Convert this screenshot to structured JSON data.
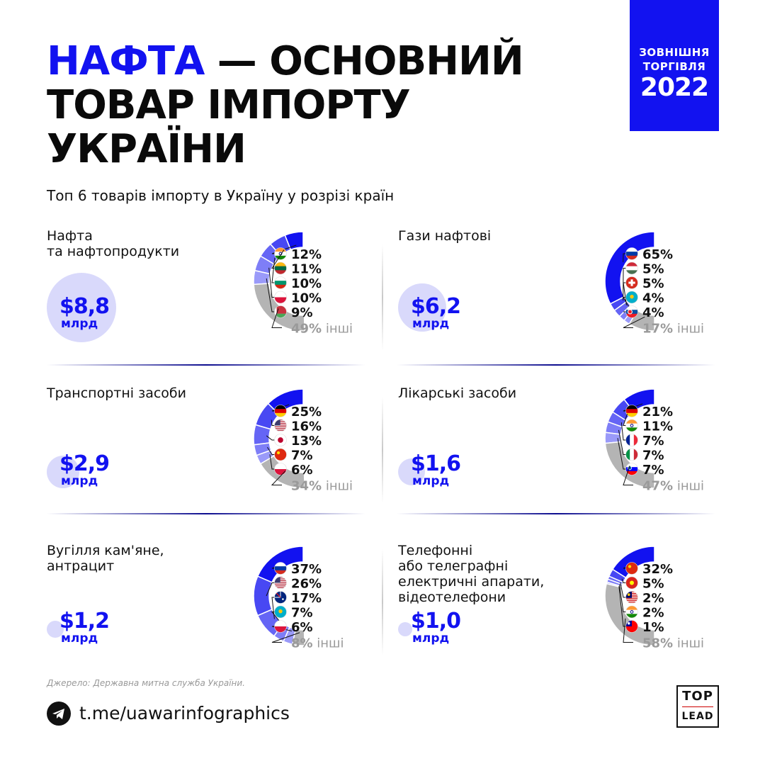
{
  "header": {
    "title_accent": "НАФТА",
    "title_rest_line1": " — ОСНОВНИЙ",
    "title_line2": "ТОВАР ІМПОРТУ",
    "title_line3": "УКРАЇНИ",
    "subtitle": "Топ 6 товарів імпорту в Україну у розрізі країн"
  },
  "badge": {
    "line1": "ЗОВНІШНЯ",
    "line2": "ТОРГІВЛЯ",
    "year": "2022"
  },
  "colors": {
    "accent": "#1212f0",
    "other": "#b4b4b4",
    "bubble": "#d9d9fb",
    "seg_light": "#6c6cf5"
  },
  "others_label": "інші",
  "chart_data": [
    {
      "type": "pie",
      "title": "Нафта\nта нафтопродукти",
      "total_value": "$8,8",
      "total_unit": "млрд",
      "total_billion": 8.8,
      "slices": [
        {
          "country": "India",
          "flag": "india-flag",
          "percent": 12,
          "label": "12%"
        },
        {
          "country": "Lithuania",
          "flag": "lithuania-flag",
          "percent": 11,
          "label": "11%"
        },
        {
          "country": "Bulgaria",
          "flag": "bulgaria-flag",
          "percent": 10,
          "label": "10%"
        },
        {
          "country": "Poland",
          "flag": "poland-flag",
          "percent": 10,
          "label": "10%"
        },
        {
          "country": "Belarus",
          "flag": "belarus-flag",
          "percent": 9,
          "label": "9%"
        }
      ],
      "other": {
        "percent": 49,
        "label": "49%"
      }
    },
    {
      "type": "pie",
      "title": "Гази нафтові",
      "total_value": "$6,2",
      "total_unit": "млрд",
      "total_billion": 6.2,
      "slices": [
        {
          "country": "Russia",
          "flag": "russia-flag",
          "percent": 65,
          "label": "65%"
        },
        {
          "country": "Hungary",
          "flag": "hungary-flag",
          "percent": 5,
          "label": "5%"
        },
        {
          "country": "Switzerland",
          "flag": "switzerland-flag",
          "percent": 5,
          "label": "5%"
        },
        {
          "country": "Kazakhstan",
          "flag": "kazakhstan-flag",
          "percent": 4,
          "label": "4%"
        },
        {
          "country": "Slovakia",
          "flag": "slovakia-flag",
          "percent": 4,
          "label": "4%"
        }
      ],
      "other": {
        "percent": 17,
        "label": "17%"
      }
    },
    {
      "type": "pie",
      "title": "Транспортні засоби",
      "total_value": "$2,9",
      "total_unit": "млрд",
      "total_billion": 2.9,
      "slices": [
        {
          "country": "Germany",
          "flag": "germany-flag",
          "percent": 25,
          "label": "25%"
        },
        {
          "country": "USA",
          "flag": "usa-flag",
          "percent": 16,
          "label": "16%"
        },
        {
          "country": "Japan",
          "flag": "japan-flag",
          "percent": 13,
          "label": "13%"
        },
        {
          "country": "China",
          "flag": "china-flag",
          "percent": 7,
          "label": "7%"
        },
        {
          "country": "Poland",
          "flag": "poland-flag",
          "percent": 6,
          "label": "6%"
        }
      ],
      "other": {
        "percent": 34,
        "label": "34%"
      }
    },
    {
      "type": "pie",
      "title": "Лікарські засоби",
      "total_value": "$1,6",
      "total_unit": "млрд",
      "total_billion": 1.6,
      "slices": [
        {
          "country": "Germany",
          "flag": "germany-flag",
          "percent": 21,
          "label": "21%"
        },
        {
          "country": "India",
          "flag": "india-flag",
          "percent": 11,
          "label": "11%"
        },
        {
          "country": "France",
          "flag": "france-flag",
          "percent": 7,
          "label": "7%"
        },
        {
          "country": "Italy",
          "flag": "italy-flag",
          "percent": 7,
          "label": "7%"
        },
        {
          "country": "Slovenia",
          "flag": "slovenia-flag",
          "percent": 7,
          "label": "7%"
        }
      ],
      "other": {
        "percent": 47,
        "label": "47%"
      }
    },
    {
      "type": "pie",
      "title": "Вугілля кам'яне,\nантрацит",
      "total_value": "$1,2",
      "total_unit": "млрд",
      "total_billion": 1.2,
      "slices": [
        {
          "country": "Russia",
          "flag": "russia-flag",
          "percent": 37,
          "label": "37%"
        },
        {
          "country": "USA",
          "flag": "usa-flag",
          "percent": 26,
          "label": "26%"
        },
        {
          "country": "Australia",
          "flag": "australia-flag",
          "percent": 17,
          "label": "17%"
        },
        {
          "country": "Kazakhstan",
          "flag": "kazakhstan-flag",
          "percent": 7,
          "label": "7%"
        },
        {
          "country": "Poland",
          "flag": "poland-flag",
          "percent": 6,
          "label": "6%"
        }
      ],
      "other": {
        "percent": 8,
        "label": "8%"
      }
    },
    {
      "type": "pie",
      "title": "Телефонні\nабо телеграфні\nелектричні апарати,\nвідеотелефони",
      "total_value": "$1,0",
      "total_unit": "млрд",
      "total_billion": 1.0,
      "slices": [
        {
          "country": "China",
          "flag": "china-flag",
          "percent": 32,
          "label": "32%"
        },
        {
          "country": "Vietnam",
          "flag": "vietnam-flag",
          "percent": 5,
          "label": "5%"
        },
        {
          "country": "Malaysia",
          "flag": "malaysia-flag",
          "percent": 2,
          "label": "2%"
        },
        {
          "country": "India",
          "flag": "india-flag",
          "percent": 2,
          "label": "2%"
        },
        {
          "country": "Taiwan",
          "flag": "taiwan-flag",
          "percent": 1,
          "label": "1%"
        }
      ],
      "other": {
        "percent": 58,
        "label": "58%"
      }
    }
  ],
  "footer": {
    "source": "Джерело: Державна митна служба України.",
    "link": "t.me/uawarinfographics",
    "logo_top": "TOP",
    "logo_bottom": "LEAD"
  }
}
